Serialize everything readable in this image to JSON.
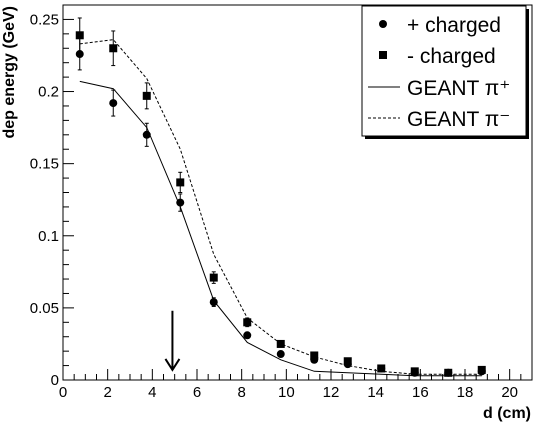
{
  "chart_data": {
    "type": "scatter",
    "xlabel": "d (cm)",
    "ylabel": "dep energy (GeV)",
    "xlim": [
      0,
      21
    ],
    "ylim": [
      0,
      0.26
    ],
    "x_ticks": [
      0,
      2,
      4,
      6,
      8,
      10,
      12,
      14,
      16,
      18,
      20
    ],
    "y_ticks": [
      0,
      0.05,
      0.1,
      0.15,
      0.2,
      0.25
    ],
    "x_tick_labels": [
      "0",
      "2",
      "4",
      "6",
      "8",
      "10",
      "12",
      "14",
      "16",
      "18",
      "20"
    ],
    "y_tick_labels": [
      "0",
      "0.05",
      "0.1",
      "0.15",
      "0.2",
      "0.25"
    ],
    "legend_position": "top-right",
    "series": [
      {
        "name": "+ charged",
        "kind": "points",
        "marker": "circle",
        "x": [
          0.75,
          2.25,
          3.75,
          5.25,
          6.75,
          8.25,
          9.75,
          11.25,
          12.75,
          14.25,
          15.75,
          17.25,
          18.75
        ],
        "y": [
          0.226,
          0.192,
          0.17,
          0.123,
          0.054,
          0.031,
          0.018,
          0.014,
          0.011,
          0.008,
          0.005,
          0.005,
          0.006
        ],
        "err": [
          0.011,
          0.009,
          0.008,
          0.006,
          0.003,
          0.002,
          0.002,
          0.002,
          0.002,
          0.002,
          0.002,
          0.002,
          0.002
        ]
      },
      {
        "name": "- charged",
        "kind": "points",
        "marker": "square",
        "x": [
          0.75,
          2.25,
          3.75,
          5.25,
          6.75,
          8.25,
          9.75,
          11.25,
          12.75,
          14.25,
          15.75,
          17.25,
          18.75
        ],
        "y": [
          0.239,
          0.23,
          0.197,
          0.137,
          0.071,
          0.04,
          0.025,
          0.017,
          0.013,
          0.008,
          0.006,
          0.005,
          0.007
        ],
        "err": [
          0.012,
          0.012,
          0.009,
          0.007,
          0.004,
          0.003,
          0.002,
          0.002,
          0.002,
          0.002,
          0.002,
          0.002,
          0.002
        ]
      },
      {
        "name": "GEANT π⁺",
        "kind": "line",
        "dash": "solid",
        "x": [
          0.75,
          2.25,
          3.75,
          5.25,
          6.75,
          8.25,
          9.75,
          11.25,
          12.75,
          14.25,
          15.75,
          17.25,
          18.75
        ],
        "y": [
          0.207,
          0.202,
          0.175,
          0.12,
          0.055,
          0.026,
          0.014,
          0.006,
          0.005,
          0.004,
          0.003,
          0.003,
          0.003
        ]
      },
      {
        "name": "GEANT π⁻",
        "kind": "line",
        "dash": "dashed",
        "x": [
          0.75,
          2.25,
          3.75,
          5.25,
          6.75,
          8.25,
          9.75,
          11.25,
          12.75,
          14.25,
          15.75,
          17.25,
          18.75
        ],
        "y": [
          0.233,
          0.236,
          0.209,
          0.16,
          0.087,
          0.043,
          0.025,
          0.016,
          0.01,
          0.006,
          0.004,
          0.004,
          0.004
        ]
      }
    ],
    "annotations": [
      {
        "kind": "arrow",
        "direction": "down",
        "x": 4.9,
        "y_from": 0.048,
        "y_to": 0.007
      }
    ]
  }
}
